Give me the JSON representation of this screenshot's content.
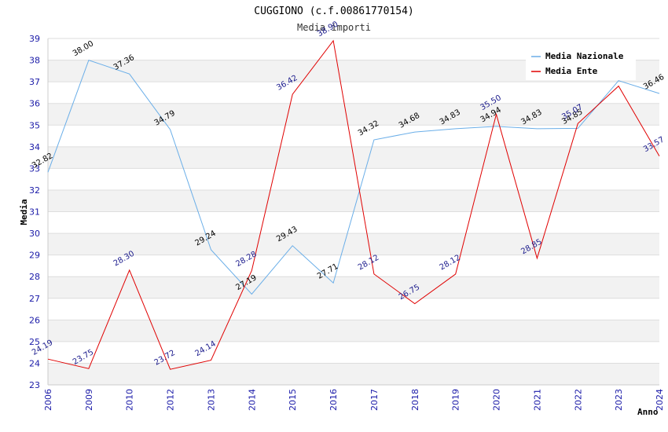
{
  "chart_data": {
    "type": "line",
    "title": "CUGGIONO (c.f.00861770154)",
    "subtitle": "Media importi",
    "xlabel": "Anno",
    "ylabel": "Media",
    "ylim": [
      23,
      39
    ],
    "yticks": [
      23,
      24,
      25,
      26,
      27,
      28,
      29,
      30,
      31,
      32,
      33,
      34,
      35,
      36,
      37,
      38,
      39
    ],
    "categories": [
      "2006",
      "2009",
      "2010",
      "2012",
      "2013",
      "2014",
      "2015",
      "2016",
      "2017",
      "2018",
      "2019",
      "2020",
      "2021",
      "2022",
      "2023",
      "2024"
    ],
    "series": [
      {
        "name": "Media Nazionale",
        "color": "#6aaee8",
        "values": [
          32.82,
          38.0,
          37.36,
          34.79,
          29.24,
          27.19,
          29.43,
          27.71,
          34.32,
          34.68,
          34.83,
          34.94,
          34.83,
          34.85,
          37.05,
          36.46
        ],
        "labels": [
          "32.82",
          "38.00",
          "37.36",
          "34.79",
          "29.24",
          "27.19",
          "29.43",
          "27.71",
          "34.32",
          "34.68",
          "34.83",
          "34.94",
          "34.83",
          "34.85",
          "",
          "36.46"
        ]
      },
      {
        "name": "Media Ente",
        "color": "#e00000",
        "values": [
          24.19,
          23.75,
          28.3,
          23.72,
          24.14,
          28.28,
          36.42,
          38.9,
          28.12,
          26.75,
          28.12,
          35.5,
          28.85,
          35.07,
          36.8,
          33.57
        ],
        "labels": [
          "24.19",
          "23.75",
          "28.30",
          "23.72",
          "24.14",
          "28.28",
          "36.42",
          "38.90",
          "28.12",
          "26.75",
          "28.12",
          "35.50",
          "28.85",
          "35.07",
          "",
          "33.57"
        ]
      }
    ],
    "grid": true,
    "legend": "top-right"
  }
}
